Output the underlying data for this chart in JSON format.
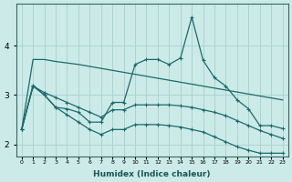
{
  "xlabel": "Humidex (Indice chaleur)",
  "x": [
    0,
    1,
    2,
    3,
    4,
    5,
    6,
    7,
    8,
    9,
    10,
    11,
    12,
    13,
    14,
    15,
    16,
    17,
    18,
    19,
    20,
    21,
    22,
    23
  ],
  "line1": [
    2.3,
    3.72,
    3.72,
    3.68,
    3.65,
    3.62,
    3.58,
    3.54,
    3.5,
    3.46,
    3.42,
    3.38,
    3.34,
    3.3,
    3.26,
    3.22,
    3.18,
    3.14,
    3.1,
    3.06,
    3.02,
    2.98,
    2.94,
    2.9
  ],
  "line2": [
    2.3,
    3.2,
    3.0,
    2.75,
    2.72,
    2.65,
    2.45,
    2.45,
    2.85,
    2.85,
    3.62,
    3.72,
    3.72,
    3.62,
    3.75,
    4.58,
    3.7,
    3.35,
    3.18,
    2.9,
    2.72,
    2.38,
    2.38,
    2.32
  ],
  "line3": [
    2.3,
    3.18,
    3.05,
    2.95,
    2.85,
    2.75,
    2.65,
    2.55,
    2.7,
    2.7,
    2.8,
    2.8,
    2.8,
    2.8,
    2.78,
    2.75,
    2.7,
    2.65,
    2.58,
    2.48,
    2.38,
    2.28,
    2.2,
    2.12
  ],
  "line4": [
    2.3,
    3.18,
    3.0,
    2.75,
    2.6,
    2.45,
    2.3,
    2.2,
    2.3,
    2.3,
    2.4,
    2.4,
    2.4,
    2.38,
    2.35,
    2.3,
    2.25,
    2.15,
    2.05,
    1.95,
    1.88,
    1.82,
    1.82,
    1.82
  ],
  "bg_color": "#cceae8",
  "line_color": "#1a6b6b",
  "grid_color": "#aad4d0",
  "ylim": [
    1.75,
    4.85
  ],
  "yticks": [
    2,
    3,
    4
  ],
  "xticks": [
    0,
    1,
    2,
    3,
    4,
    5,
    6,
    7,
    8,
    9,
    10,
    11,
    12,
    13,
    14,
    15,
    16,
    17,
    18,
    19,
    20,
    21,
    22,
    23
  ],
  "figsize": [
    3.2,
    2.0
  ],
  "dpi": 100
}
